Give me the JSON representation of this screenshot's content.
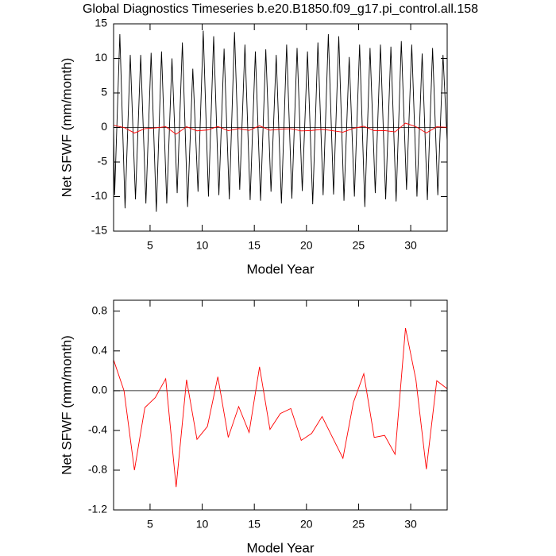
{
  "chart_data": [
    {
      "type": "line",
      "title": "Global Diagnostics Timeseries b.e20.B1850.f09_g17.pi_control.all.158",
      "ylabel": "Net SFWF (mm/month)",
      "xlabel": "Model Year",
      "xlim": [
        1.5,
        33.5
      ],
      "xticks": [
        5,
        10,
        15,
        20,
        25,
        30
      ],
      "ylim": [
        -15,
        15
      ],
      "yticks": [
        -15,
        -10,
        -5,
        0,
        5,
        10,
        15
      ],
      "hline": 0,
      "series": [
        {
          "color": "#000000",
          "x": [
            1.5,
            1.6,
            2.1,
            2.6,
            3.1,
            3.6,
            4.1,
            4.6,
            5.1,
            5.6,
            6.1,
            6.6,
            7.1,
            7.6,
            8.1,
            8.6,
            9.1,
            9.6,
            10.1,
            10.6,
            11.1,
            11.6,
            12.1,
            12.6,
            13.1,
            13.6,
            14.1,
            14.6,
            15.1,
            15.6,
            16.1,
            16.6,
            17.1,
            17.6,
            18.1,
            18.6,
            19.1,
            19.6,
            20.1,
            20.6,
            21.1,
            21.6,
            22.1,
            22.6,
            23.1,
            23.6,
            24.1,
            24.6,
            25.1,
            25.6,
            26.1,
            26.6,
            27.1,
            27.6,
            28.1,
            28.6,
            29.1,
            29.6,
            30.1,
            30.6,
            31.1,
            31.6,
            32.1,
            32.6,
            33.1,
            33.5
          ],
          "values": [
            0,
            -9.8,
            13.5,
            -11.7,
            10.5,
            -10.4,
            10.5,
            -11,
            10.8,
            -12.2,
            11,
            -11,
            10,
            -9.5,
            12.3,
            -11.5,
            8.5,
            -9.3,
            14,
            -10,
            13.2,
            -9.8,
            11.4,
            -10.4,
            13.8,
            -9,
            12,
            -10.5,
            11,
            -10.6,
            11.3,
            -9.3,
            10.5,
            -11,
            12,
            -10.3,
            11.5,
            -9.2,
            11,
            -11.1,
            12.3,
            -9.8,
            13.5,
            -9.7,
            13.2,
            -10.6,
            10.2,
            -10,
            12,
            -11.5,
            11.5,
            -9.5,
            12,
            -10.4,
            11.7,
            -10.7,
            12.5,
            -9,
            12,
            -10,
            10.7,
            -10.5,
            11.5,
            -9.8,
            10.5,
            -2
          ]
        },
        {
          "color": "#ff0000",
          "x": [
            1.5,
            2.5,
            3.5,
            4.5,
            5.5,
            6.5,
            7.5,
            8.5,
            9.5,
            10.5,
            11.5,
            12.5,
            13.5,
            14.5,
            15.5,
            16.5,
            17.5,
            18.5,
            19.5,
            20.5,
            21.5,
            22.5,
            23.5,
            24.5,
            25.5,
            26.5,
            27.5,
            28.5,
            29.5,
            30.5,
            31.5,
            32.5,
            33.5
          ],
          "values": [
            0.31,
            0.0,
            -0.8,
            -0.17,
            -0.07,
            0.12,
            -0.97,
            0.11,
            -0.49,
            -0.36,
            0.14,
            -0.47,
            -0.16,
            -0.42,
            0.24,
            -0.39,
            -0.23,
            -0.18,
            -0.5,
            -0.43,
            -0.26,
            -0.47,
            -0.68,
            -0.12,
            0.17,
            -0.47,
            -0.45,
            -0.64,
            0.63,
            0.11,
            -0.79,
            0.1,
            0.02
          ]
        }
      ]
    },
    {
      "type": "line",
      "ylabel": "Net SFWF (mm/month)",
      "xlabel": "Model Year",
      "xlim": [
        1.5,
        33.5
      ],
      "xticks": [
        5,
        10,
        15,
        20,
        25,
        30
      ],
      "ylim": [
        -1.2,
        0.91
      ],
      "yticks": [
        {
          "value": -1.2,
          "label": "-1.2"
        },
        {
          "value": -0.8,
          "label": "-0.8"
        },
        {
          "value": -0.4,
          "label": "-0.4"
        },
        {
          "value": 0,
          "label": "0.0"
        },
        0.4,
        0.8
      ],
      "hline": 0,
      "series": [
        {
          "color": "#ff0000",
          "x": [
            1.5,
            2.5,
            3.5,
            4.5,
            5.5,
            6.5,
            7.5,
            8.5,
            9.5,
            10.5,
            11.5,
            12.5,
            13.5,
            14.5,
            15.5,
            16.5,
            17.5,
            18.5,
            19.5,
            20.5,
            21.5,
            22.5,
            23.5,
            24.5,
            25.5,
            26.5,
            27.5,
            28.5,
            29.5,
            30.5,
            31.5,
            32.5,
            33.5
          ],
          "values": [
            0.31,
            0.0,
            -0.8,
            -0.17,
            -0.07,
            0.12,
            -0.97,
            0.11,
            -0.49,
            -0.36,
            0.14,
            -0.47,
            -0.16,
            -0.42,
            0.24,
            -0.39,
            -0.23,
            -0.18,
            -0.5,
            -0.43,
            -0.26,
            -0.47,
            -0.68,
            -0.12,
            0.17,
            -0.47,
            -0.45,
            -0.64,
            0.63,
            0.11,
            -0.79,
            0.1,
            0.02
          ]
        }
      ]
    }
  ]
}
